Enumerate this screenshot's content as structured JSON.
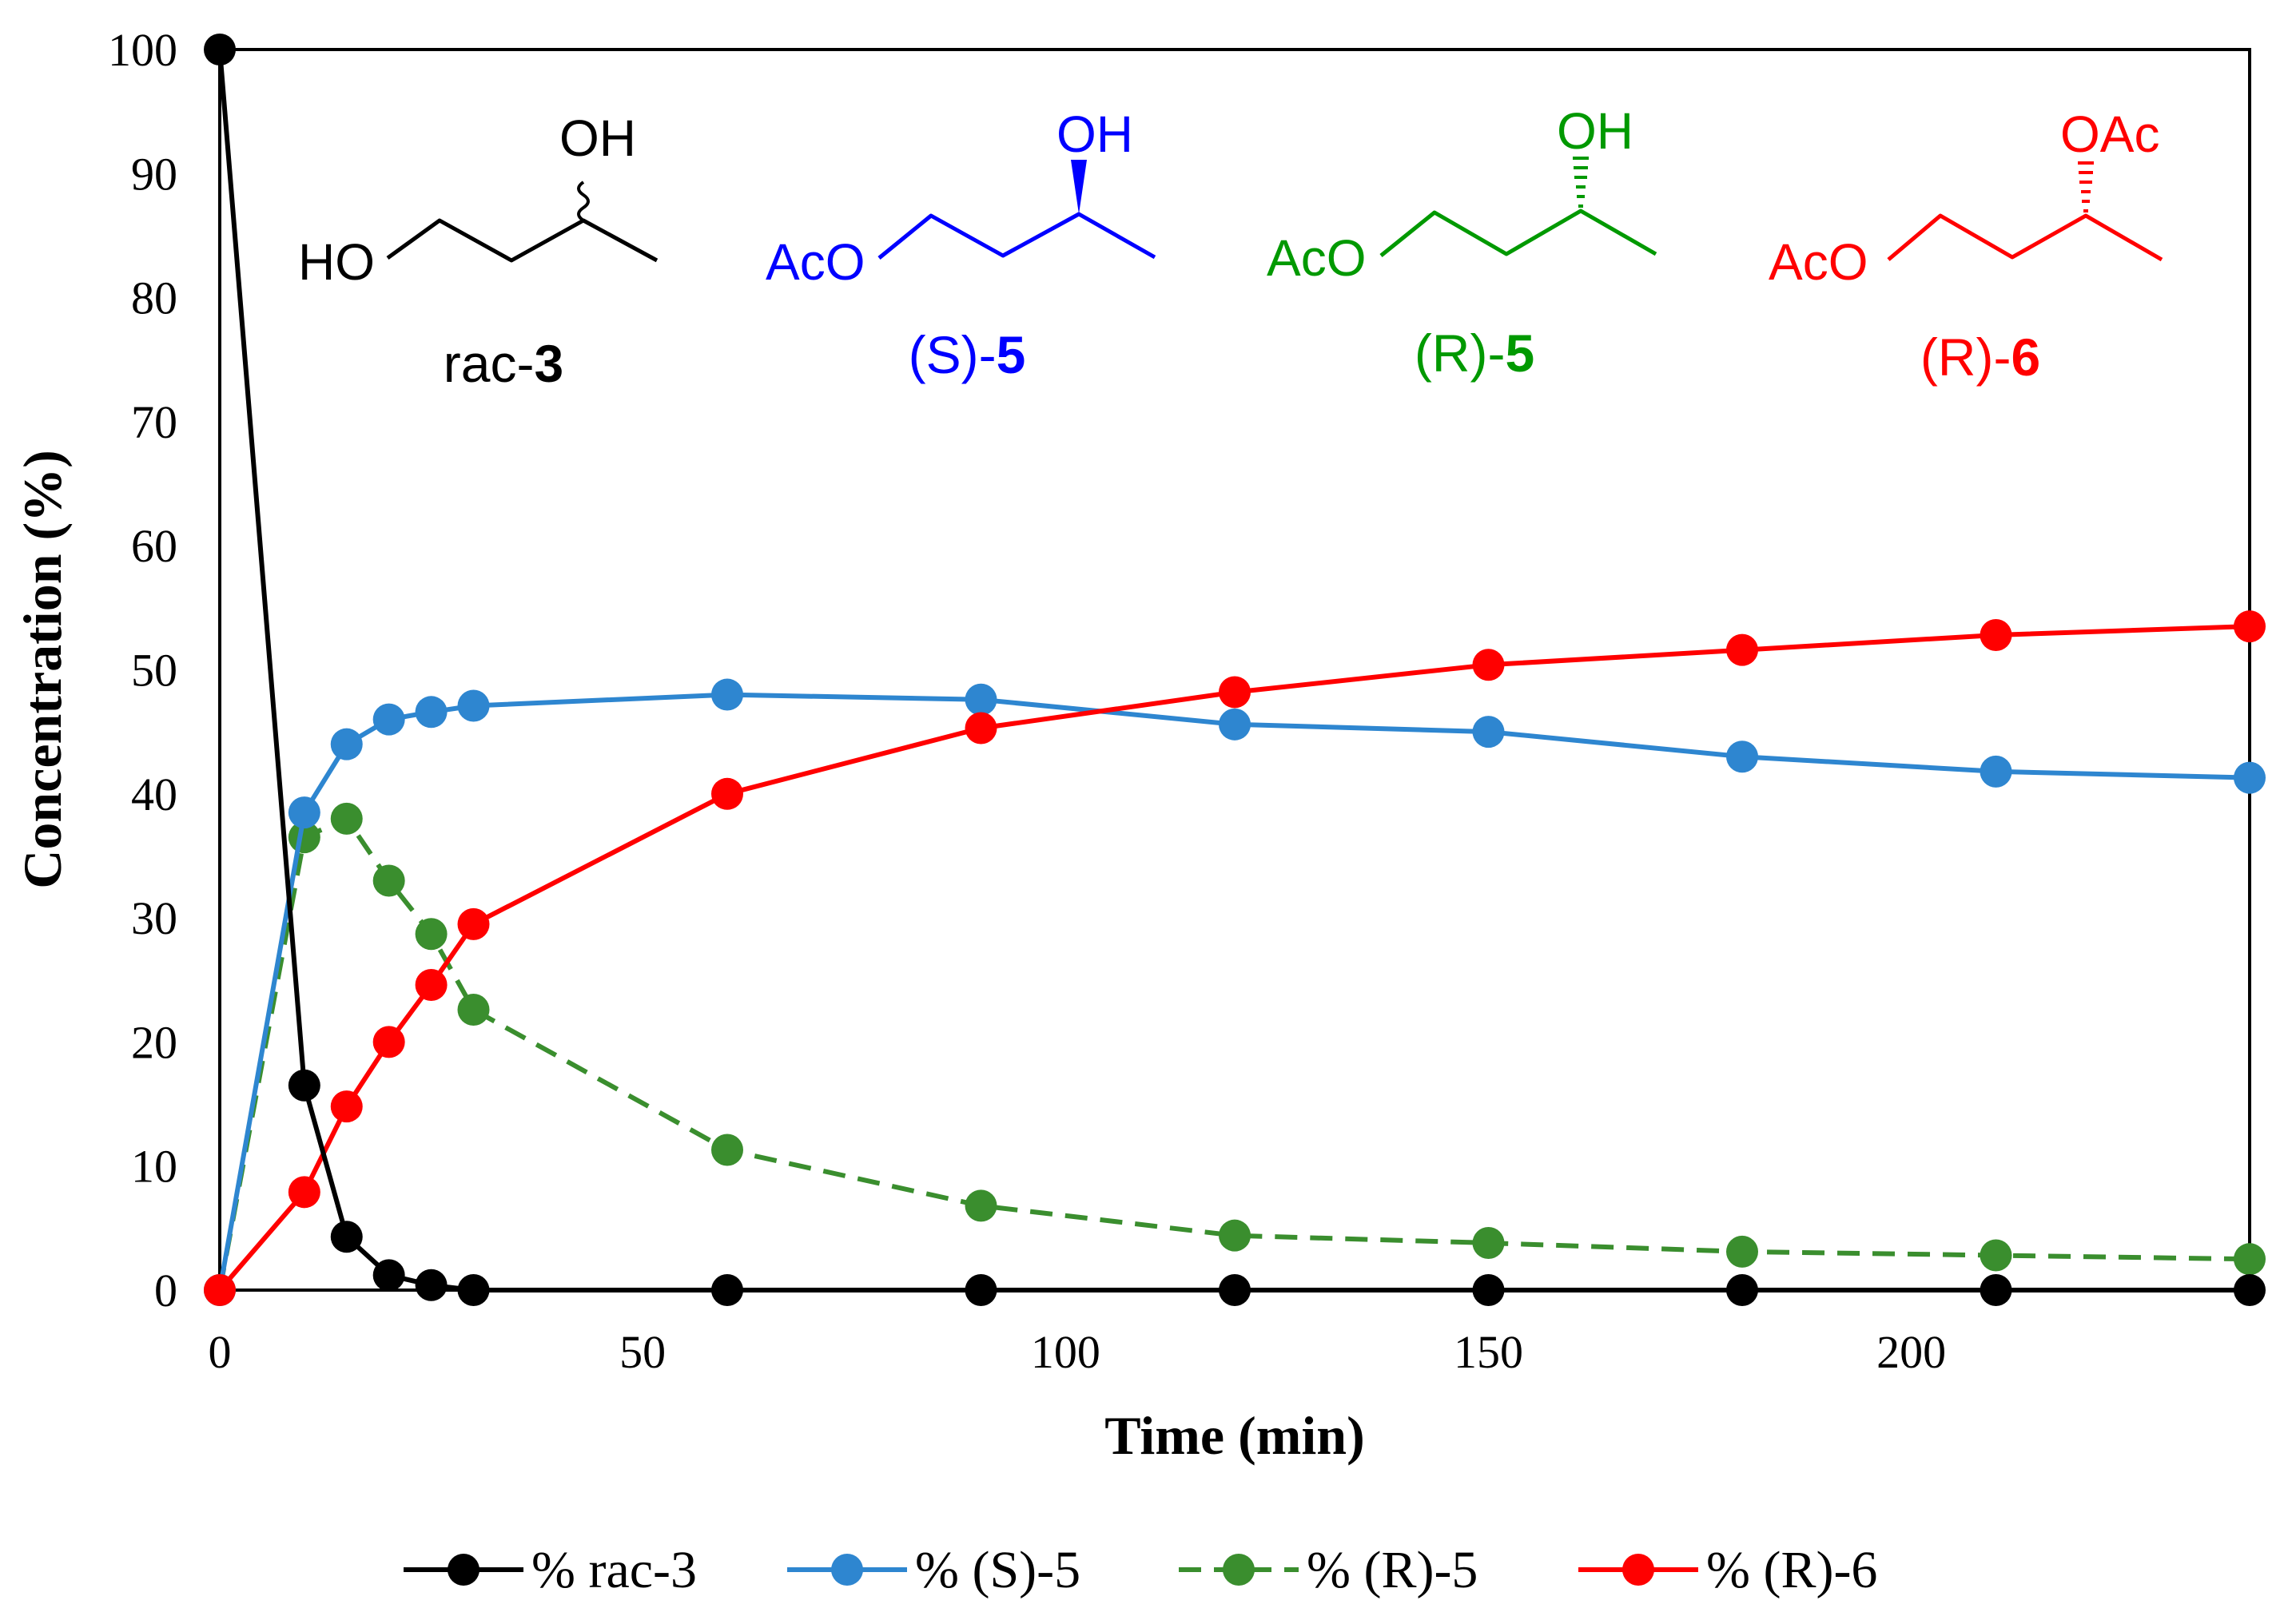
{
  "chart_data": {
    "type": "line",
    "title": "",
    "xlabel": "Time (min)",
    "ylabel": "Concentration (%)",
    "xlim": [
      0,
      240
    ],
    "ylim": [
      0,
      100
    ],
    "xticks": [
      "0",
      "50",
      "100",
      "150",
      "200"
    ],
    "xtick_values": [
      0,
      50,
      100,
      150,
      200
    ],
    "yticks": [
      "0",
      "10",
      "20",
      "30",
      "40",
      "50",
      "60",
      "70",
      "80",
      "90",
      "100"
    ],
    "ytick_values": [
      0,
      10,
      20,
      30,
      40,
      50,
      60,
      70,
      80,
      90,
      100
    ],
    "grid": false,
    "legend_position": "bottom",
    "series": [
      {
        "name": "% rac-3",
        "color": "#000000",
        "dash": "solid",
        "x": [
          0,
          10,
          15,
          20,
          25,
          30,
          60,
          90,
          120,
          150,
          180,
          210,
          240
        ],
        "y": [
          100,
          16.5,
          4.3,
          1.2,
          0.4,
          0,
          0,
          0,
          0,
          0,
          0,
          0,
          0
        ]
      },
      {
        "name": "% (S)-5",
        "color": "#2E86D0",
        "dash": "solid",
        "x": [
          0,
          10,
          15,
          20,
          25,
          30,
          60,
          90,
          120,
          150,
          180,
          210,
          240
        ],
        "y": [
          0,
          38.5,
          44,
          46,
          46.6,
          47.1,
          48,
          47.6,
          45.6,
          45,
          43,
          41.8,
          41.3
        ]
      },
      {
        "name": "% (R)-5",
        "color": "#3A8E2E",
        "dash": "dashed",
        "x": [
          0,
          10,
          15,
          20,
          25,
          30,
          60,
          90,
          120,
          150,
          180,
          210,
          240
        ],
        "y": [
          0,
          36.5,
          38,
          33,
          28.7,
          22.6,
          11.3,
          6.8,
          4.4,
          3.8,
          3.1,
          2.8,
          2.5
        ]
      },
      {
        "name": "% (R)-6",
        "color": "#FF0000",
        "dash": "solid",
        "x": [
          0,
          10,
          15,
          20,
          25,
          30,
          60,
          90,
          120,
          150,
          180,
          210,
          240
        ],
        "y": [
          0,
          7.9,
          14.8,
          20,
          24.6,
          29.5,
          40,
          45.3,
          48.2,
          50.4,
          51.6,
          52.8,
          53.5
        ]
      }
    ],
    "structures": [
      {
        "label_prefix": "rac-",
        "label_bold": "3",
        "color": "#000000",
        "left_group": "HO",
        "right_group": "OH",
        "stereo": "wavy"
      },
      {
        "label_prefix": "(S)-",
        "label_bold": "5",
        "color": "#0000FF",
        "left_group": "AcO",
        "right_group": "OH",
        "stereo": "wedge"
      },
      {
        "label_prefix": "(R)-",
        "label_bold": "5",
        "color": "#009900",
        "left_group": "AcO",
        "right_group": "OH",
        "stereo": "hash"
      },
      {
        "label_prefix": "(R)-",
        "label_bold": "6",
        "color": "#FF0000",
        "left_group": "AcO",
        "right_group": "OAc",
        "stereo": "hash"
      }
    ]
  }
}
